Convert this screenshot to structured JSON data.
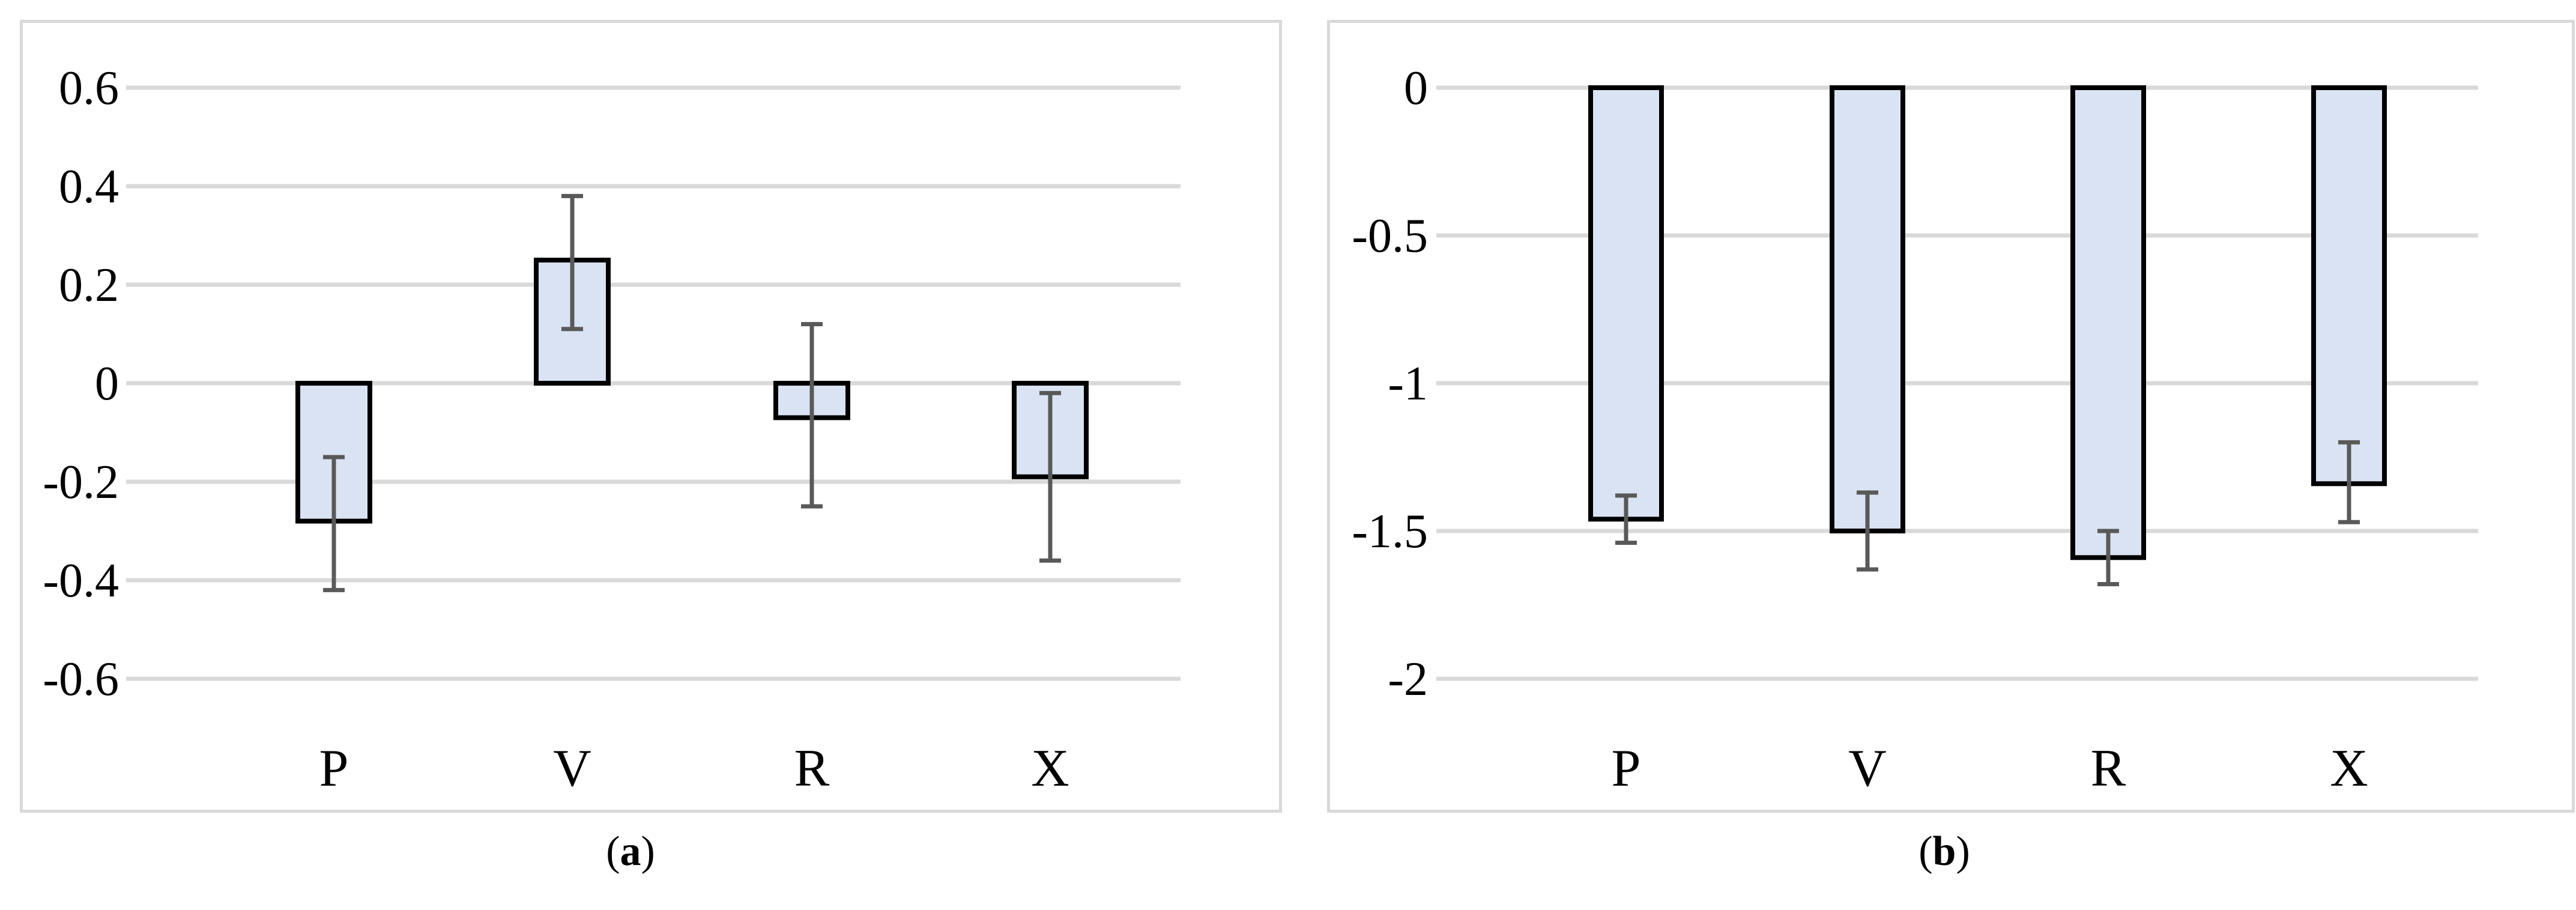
{
  "chart_data": [
    {
      "type": "bar",
      "title": "",
      "xlabel": "",
      "ylabel": "",
      "categories": [
        "P",
        "V",
        "R",
        "X"
      ],
      "values": [
        -0.28,
        0.25,
        -0.07,
        -0.19
      ],
      "error_low": [
        -0.42,
        0.11,
        -0.25,
        -0.36
      ],
      "error_high": [
        -0.15,
        0.38,
        0.12,
        -0.02
      ],
      "ylim": [
        -0.6,
        0.6
      ],
      "yticks": [
        0.6,
        0.4,
        0.2,
        0,
        -0.2,
        -0.4,
        -0.6
      ],
      "ytick_labels": [
        "0.6",
        "0.4",
        "0.2",
        "0",
        "-0.2",
        "-0.4",
        "-0.6"
      ],
      "grid": true,
      "bar_color": "#dae3f3",
      "caption_letter": "a"
    },
    {
      "type": "bar",
      "title": "",
      "xlabel": "",
      "ylabel": "",
      "categories": [
        "P",
        "V",
        "R",
        "X"
      ],
      "values": [
        -1.46,
        -1.5,
        -1.59,
        -1.34
      ],
      "error_low": [
        -1.54,
        -1.63,
        -1.68,
        -1.47
      ],
      "error_high": [
        -1.38,
        -1.37,
        -1.5,
        -1.2
      ],
      "ylim": [
        -2,
        0
      ],
      "yticks": [
        0,
        -0.5,
        -1,
        -1.5,
        -2
      ],
      "ytick_labels": [
        "0",
        "-0.5",
        "-1",
        "-1.5",
        "-2"
      ],
      "grid": true,
      "bar_color": "#dae3f3",
      "caption_letter": "b"
    }
  ]
}
